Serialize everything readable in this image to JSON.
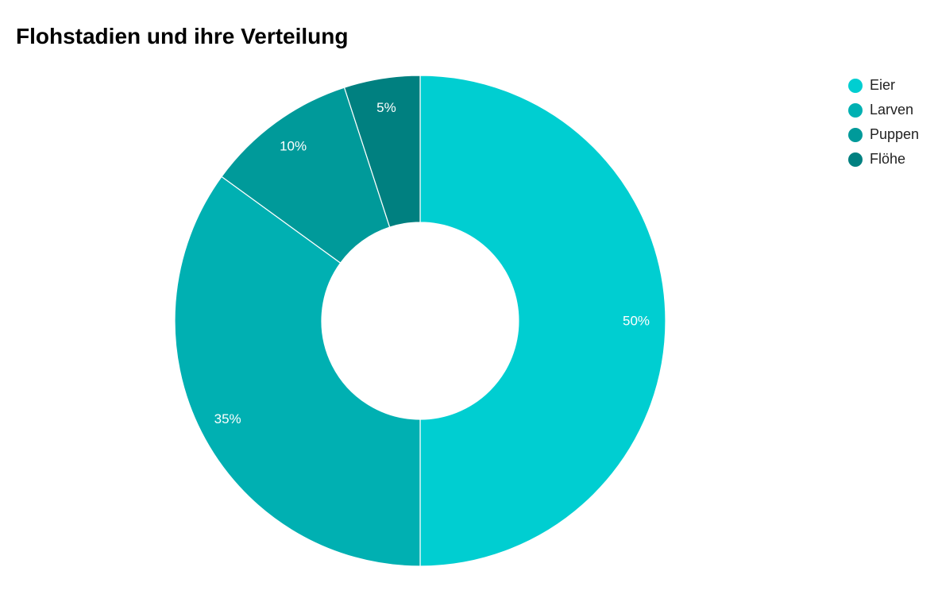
{
  "chart_data": {
    "type": "pie",
    "title": "Flohstadien und ihre Verteilung",
    "categories": [
      "Eier",
      "Larven",
      "Puppen",
      "Flöhe"
    ],
    "values": [
      50,
      35,
      10,
      5
    ],
    "value_labels": [
      "50%",
      "35%",
      "10%",
      "5%"
    ],
    "colors": [
      "#00CED1",
      "#00B0B2",
      "#009A9A",
      "#008080"
    ],
    "donut": true,
    "start_angle": "top",
    "direction": "clockwise",
    "legend_position": "top-right"
  }
}
